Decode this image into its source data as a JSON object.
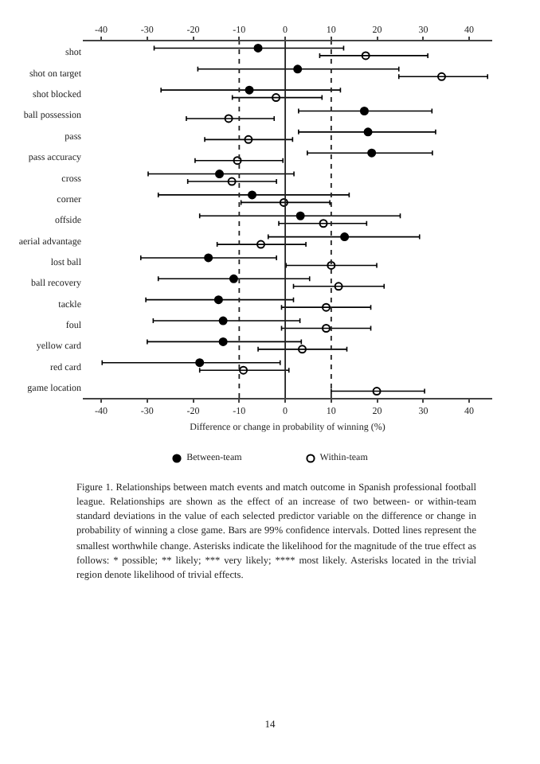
{
  "chart_data": {
    "type": "scatter",
    "orientation": "horizontal",
    "xlabel": "Difference or change in probability of winning (%)",
    "categories": [
      "shot",
      "shot on target",
      "shot blocked",
      "ball possession",
      "pass",
      "pass accuracy",
      "cross",
      "corner",
      "offside",
      "aerial advantage",
      "lost ball",
      "ball recovery",
      "tackle",
      "foul",
      "yellow card",
      "red card",
      "game location"
    ],
    "series": [
      {
        "name": "Between-team",
        "color": "#000000",
        "marker": "circle",
        "values": [
          -5.9,
          2.7,
          -7.8,
          17.2,
          18,
          18.8,
          -14.3,
          -7.2,
          3.3,
          12.9,
          -16.7,
          -11.2,
          -14.5,
          -13.5,
          -13.5,
          -18.6,
          null
        ],
        "errors": [
          [
            -28.5,
            12.7
          ],
          [
            -19,
            24.7
          ],
          [
            -27,
            12
          ],
          [
            2.9,
            31.9
          ],
          [
            2.9,
            32.7
          ],
          [
            4.8,
            32
          ],
          [
            -29.8,
            1.9
          ],
          [
            -27.6,
            13.9
          ],
          [
            -18.6,
            25
          ],
          [
            -3.7,
            29.2
          ],
          [
            -31.4,
            -1.9
          ],
          [
            -27.6,
            5.3
          ],
          [
            -30.3,
            1.8
          ],
          [
            -28.7,
            3.2
          ],
          [
            -30,
            3.5
          ],
          [
            -39.8,
            -1.1
          ],
          null
        ]
      },
      {
        "name": "Within-team",
        "color": "#000000",
        "marker": "circle-open",
        "values": [
          17.5,
          34,
          -2,
          -12.3,
          -8,
          -10.4,
          -11.6,
          -0.3,
          8.3,
          -5.3,
          10,
          11.6,
          8.9,
          8.9,
          3.7,
          -9.1,
          19.9
        ],
        "errors": [
          [
            7.5,
            31
          ],
          [
            24.7,
            44
          ],
          [
            -11.5,
            8
          ],
          [
            -21.5,
            -2.4
          ],
          [
            -17.5,
            1.6
          ],
          [
            -19.6,
            -0.5
          ],
          [
            -21.2,
            -1.9
          ],
          [
            -9.6,
            9.7
          ],
          [
            -1.4,
            17.7
          ],
          [
            -14.8,
            4.5
          ],
          [
            0.2,
            19.9
          ],
          [
            1.8,
            21.5
          ],
          [
            -0.8,
            18.6
          ],
          [
            -0.8,
            18.6
          ],
          [
            -5.9,
            13.4
          ],
          [
            -18.6,
            0.8
          ],
          [
            10,
            30.3
          ]
        ]
      }
    ],
    "xlim": [
      -44,
      45
    ],
    "xticks": [
      -40,
      -30,
      -20,
      -10,
      0,
      10,
      20,
      30,
      40
    ],
    "x2lim": [
      -44,
      45
    ],
    "x2ticks": [
      -40,
      -30,
      -20,
      -10,
      0,
      10,
      20,
      30,
      40
    ],
    "ref_lines": [
      {
        "axis": "x",
        "value": -10,
        "line_style": "dotted"
      },
      {
        "axis": "x",
        "value": 0,
        "line_style": "solid"
      },
      {
        "axis": "x",
        "value": 10,
        "line_style": "dotted"
      }
    ],
    "grid": false,
    "legend": "bottom",
    "annotations": [
      "Figure 1. Relationships between match events and match outcome in Spanish professional football league. Relationships are shown as the effect of an increase of two between- or within-team standard deviations in the value of each selected predictor variable on the difference or change in probability of winning a close game. Bars are 99% confidence intervals. Dotted lines represent the smallest worthwhile change. Asterisks indicate the likelihood for the magnitude of the true effect as follows: * possible; ** likely; *** very likely; **** most likely. Asterisks located in the trivial region denote likelihood of trivial effects.",
      "14"
    ]
  }
}
